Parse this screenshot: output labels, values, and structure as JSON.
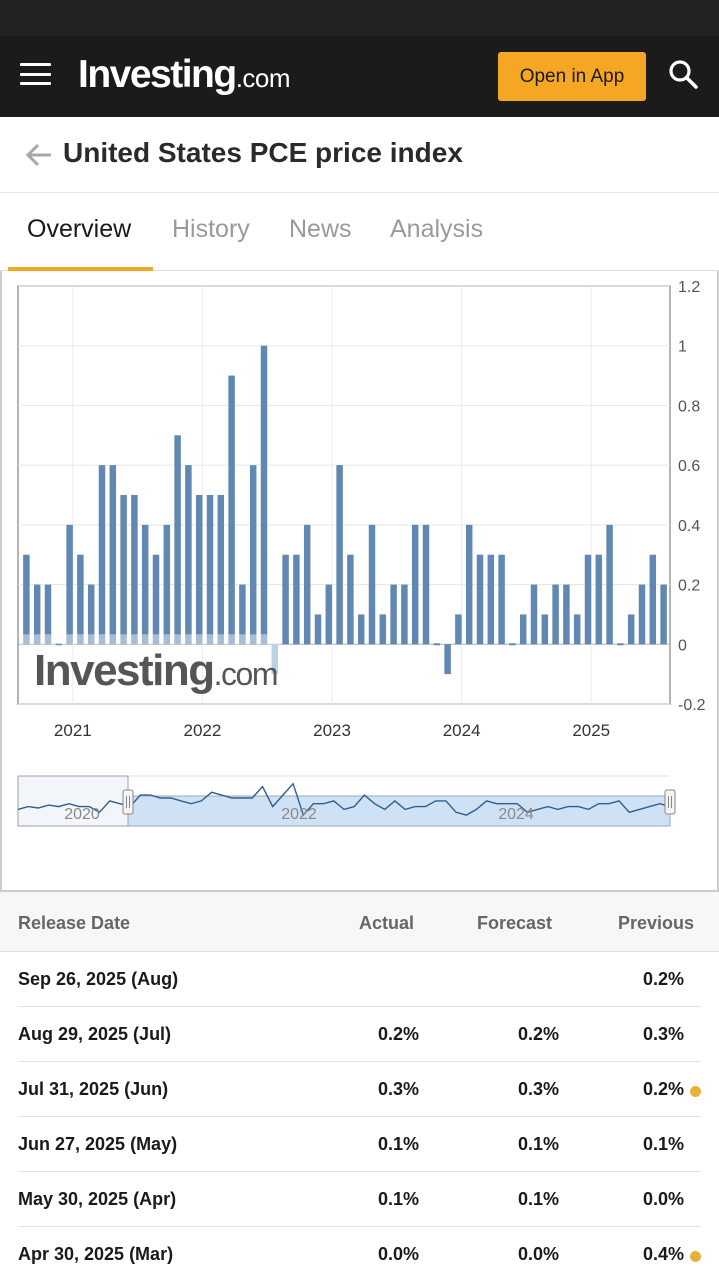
{
  "header": {
    "logo_main": "Investing",
    "logo_suffix": ".com",
    "open_app_label": "Open in App",
    "menu_icon": "menu-icon",
    "search_icon": "search-icon"
  },
  "page": {
    "title": "United States PCE price index",
    "back_icon": "arrow-left-icon"
  },
  "tabs": [
    {
      "label": "Overview",
      "active": true
    },
    {
      "label": "History",
      "active": false
    },
    {
      "label": "News",
      "active": false
    },
    {
      "label": "Analysis",
      "active": false
    }
  ],
  "colors": {
    "accent": "#f5a623",
    "bar": "#6088b3",
    "bar_pale": "#bcd0e6",
    "navigator_fill": "#cfe2f5",
    "dot": "#e8b23a"
  },
  "chart_data": {
    "type": "bar",
    "x_tick_labels": [
      "2021",
      "2022",
      "2023",
      "2024",
      "2025"
    ],
    "y_tick_labels": [
      "1.2",
      "1",
      "0.8",
      "0.6",
      "0.4",
      "0.2",
      "0",
      "-0.2"
    ],
    "ylim": [
      -0.2,
      1.2
    ],
    "grid": true,
    "watermark": "Investing.com",
    "categories": [
      "2020-08",
      "2020-09",
      "2020-10",
      "2020-11",
      "2020-12",
      "2021-01",
      "2021-02",
      "2021-03",
      "2021-04",
      "2021-05",
      "2021-06",
      "2021-07",
      "2021-08",
      "2021-09",
      "2021-10",
      "2021-11",
      "2021-12",
      "2022-01",
      "2022-02",
      "2022-03",
      "2022-04",
      "2022-05",
      "2022-06",
      "2022-07",
      "2022-08",
      "2022-09",
      "2022-10",
      "2022-11",
      "2022-12",
      "2023-01",
      "2023-02",
      "2023-03",
      "2023-04",
      "2023-05",
      "2023-06",
      "2023-07",
      "2023-08",
      "2023-09",
      "2023-10",
      "2023-11",
      "2023-12",
      "2024-01",
      "2024-02",
      "2024-03",
      "2024-04",
      "2024-05",
      "2024-06",
      "2024-07",
      "2024-08",
      "2024-09",
      "2024-10",
      "2024-11",
      "2024-12",
      "2025-01",
      "2025-02",
      "2025-03",
      "2025-04",
      "2025-05",
      "2025-06",
      "2025-07"
    ],
    "values": [
      0.3,
      0.2,
      0.2,
      0.0,
      0.4,
      0.3,
      0.2,
      0.6,
      0.6,
      0.5,
      0.5,
      0.4,
      0.3,
      0.4,
      0.7,
      0.6,
      0.5,
      0.5,
      0.5,
      0.9,
      0.2,
      0.6,
      1.0,
      -0.1,
      0.3,
      0.3,
      0.4,
      0.1,
      0.2,
      0.6,
      0.3,
      0.1,
      0.4,
      0.1,
      0.2,
      0.2,
      0.4,
      0.4,
      0.0,
      -0.1,
      0.1,
      0.4,
      0.3,
      0.3,
      0.3,
      0.0,
      0.1,
      0.2,
      0.1,
      0.2,
      0.2,
      0.1,
      0.3,
      0.3,
      0.4,
      0.0,
      0.1,
      0.2,
      0.3,
      0.2
    ],
    "navigator": {
      "labels": [
        "2020",
        "2022",
        "2024"
      ]
    }
  },
  "table": {
    "headers": {
      "release_date": "Release Date",
      "actual": "Actual",
      "forecast": "Forecast",
      "previous": "Previous"
    },
    "rows": [
      {
        "date": "Sep 26, 2025 (Aug)",
        "actual": "",
        "forecast": "",
        "previous": "0.2%",
        "dot": false
      },
      {
        "date": "Aug 29, 2025 (Jul)",
        "actual": "0.2%",
        "forecast": "0.2%",
        "previous": "0.3%",
        "dot": false
      },
      {
        "date": "Jul 31, 2025 (Jun)",
        "actual": "0.3%",
        "forecast": "0.3%",
        "previous": "0.2%",
        "dot": true
      },
      {
        "date": "Jun 27, 2025 (May)",
        "actual": "0.1%",
        "forecast": "0.1%",
        "previous": "0.1%",
        "dot": false
      },
      {
        "date": "May 30, 2025 (Apr)",
        "actual": "0.1%",
        "forecast": "0.1%",
        "previous": "0.0%",
        "dot": false
      },
      {
        "date": "Apr 30, 2025 (Mar)",
        "actual": "0.0%",
        "forecast": "0.0%",
        "previous": "0.4%",
        "dot": true
      }
    ]
  }
}
